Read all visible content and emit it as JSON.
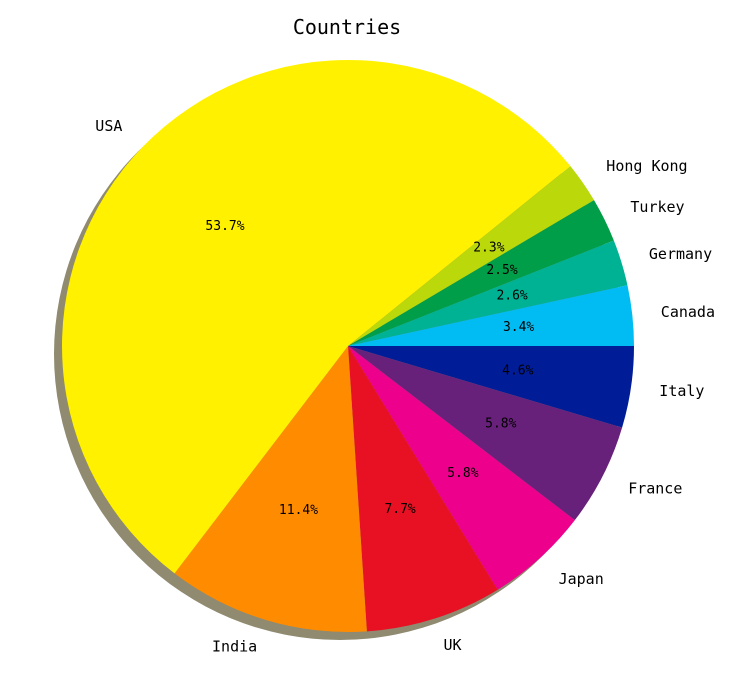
{
  "chart_data": {
    "type": "pie",
    "title": "Countries",
    "start_angle_deg": 0,
    "direction": "clockwise",
    "shadow": true,
    "slices": [
      {
        "label": "Italy",
        "value": 4.6,
        "pct_label": "4.6%",
        "color": "#001D97"
      },
      {
        "label": "France",
        "value": 5.8,
        "pct_label": "5.8%",
        "color": "#68217A"
      },
      {
        "label": "Japan",
        "value": 5.8,
        "pct_label": "5.8%",
        "color": "#EC008C"
      },
      {
        "label": "UK",
        "value": 7.7,
        "pct_label": "7.7%",
        "color": "#E81123"
      },
      {
        "label": "India",
        "value": 11.4,
        "pct_label": "11.4%",
        "color": "#FF8C00"
      },
      {
        "label": "USA",
        "value": 53.7,
        "pct_label": "53.7%",
        "color": "#FFF100"
      },
      {
        "label": "Hong Kong",
        "value": 2.3,
        "pct_label": "2.3%",
        "color": "#BAD80A"
      },
      {
        "label": "Turkey",
        "value": 2.5,
        "pct_label": "2.5%",
        "color": "#009E49"
      },
      {
        "label": "Germany",
        "value": 2.6,
        "pct_label": "2.6%",
        "color": "#00B294"
      },
      {
        "label": "Canada",
        "value": 3.4,
        "pct_label": "3.4%",
        "color": "#00BCF2"
      }
    ]
  }
}
